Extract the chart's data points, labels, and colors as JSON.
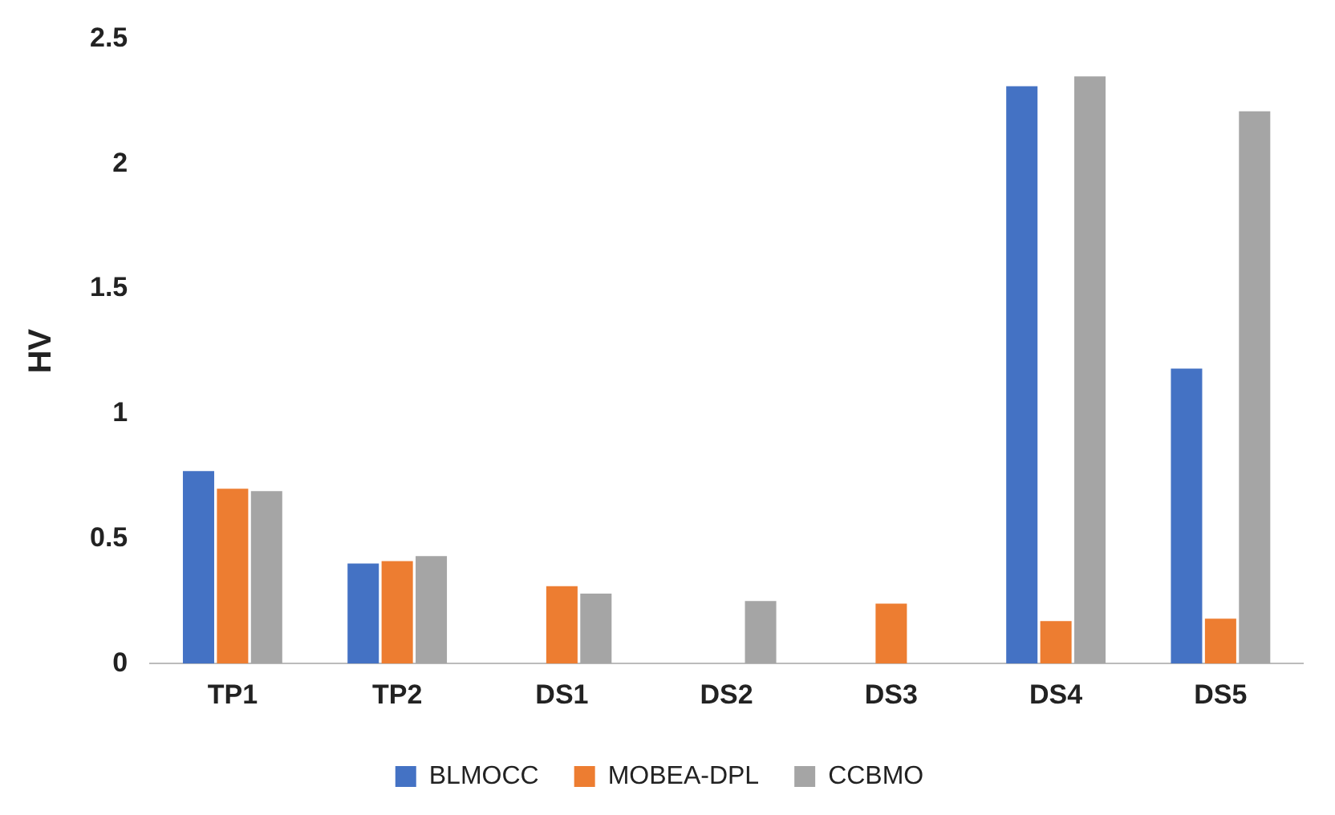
{
  "chart_data": {
    "type": "bar",
    "ylabel": "HV",
    "categories": [
      "TP1",
      "TP2",
      "DS1",
      "DS2",
      "DS3",
      "DS4",
      "DS5"
    ],
    "series": [
      {
        "name": "BLMOCC",
        "color": "#4472c4",
        "values": [
          0.77,
          0.4,
          null,
          null,
          null,
          2.31,
          1.18
        ]
      },
      {
        "name": "MOBEA-DPL",
        "color": "#ed7d31",
        "values": [
          0.7,
          0.41,
          0.31,
          null,
          0.24,
          0.17,
          0.18
        ]
      },
      {
        "name": "CCBMO",
        "color": "#a5a5a5",
        "values": [
          0.69,
          0.43,
          0.28,
          0.25,
          null,
          2.35,
          2.21
        ]
      }
    ],
    "ylim": [
      0,
      2.5
    ],
    "yticks": [
      0,
      0.5,
      1,
      1.5,
      2,
      2.5
    ],
    "grid": false,
    "legend": "bottom"
  }
}
